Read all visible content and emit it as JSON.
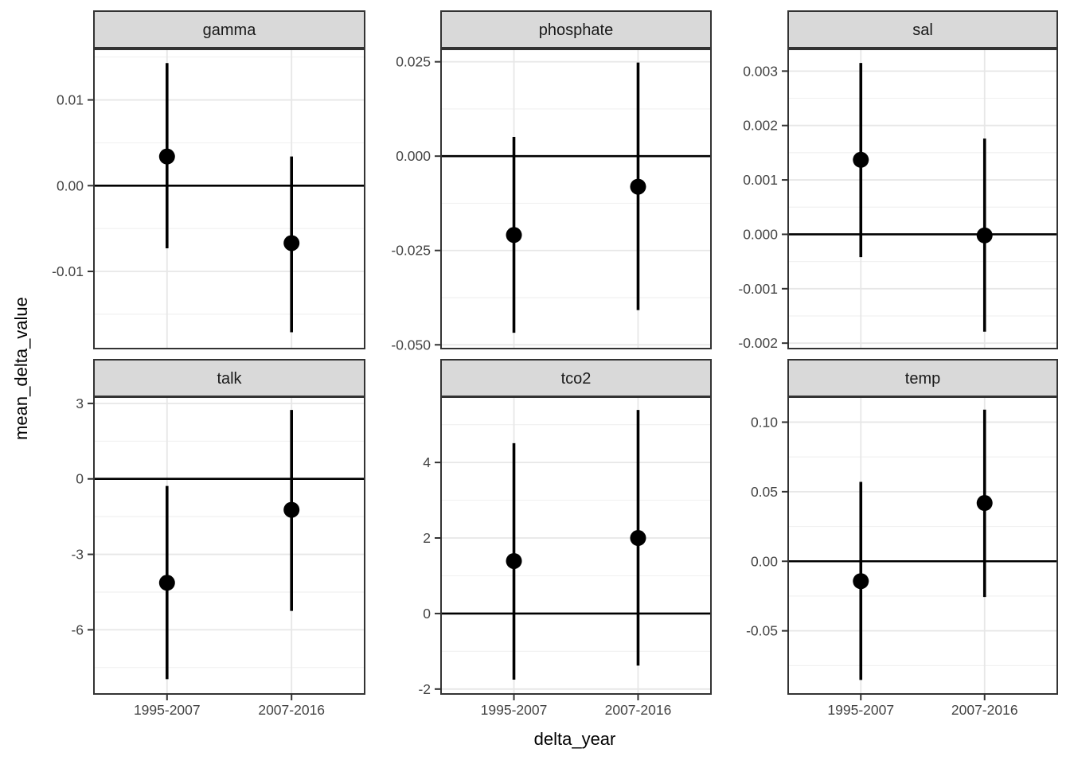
{
  "chart_data": {
    "type": "scatter",
    "subtype": "faceted_pointrange",
    "title": "",
    "xlabel": "delta_year",
    "ylabel": "mean_delta_value",
    "facet_rows": 2,
    "facet_cols": 3,
    "categories": [
      "1995-2007",
      "2007-2016"
    ],
    "hline": 0,
    "grid": "on",
    "legend": "none",
    "facets": [
      {
        "label": "gamma",
        "ylim": [
          -0.019,
          0.0159
        ],
        "yticks": [
          0.01,
          0,
          -0.01
        ],
        "ytick_labels": [
          "0.01",
          "0.00",
          "-0.01"
        ],
        "points": [
          {
            "x": "1995-2007",
            "y": 0.0034,
            "ymin": -0.0073,
            "ymax": 0.0143
          },
          {
            "x": "2007-2016",
            "y": -0.0067,
            "ymin": -0.0171,
            "ymax": 0.0034
          }
        ]
      },
      {
        "label": "phosphate",
        "ylim": [
          -0.051,
          0.0283
        ],
        "yticks": [
          0.025,
          0,
          -0.025,
          -0.05
        ],
        "ytick_labels": [
          "0.025",
          "0.000",
          "-0.025",
          "-0.050"
        ],
        "points": [
          {
            "x": "1995-2007",
            "y": -0.0209,
            "ymin": -0.0468,
            "ymax": 0.0051
          },
          {
            "x": "2007-2016",
            "y": -0.0081,
            "ymin": -0.0408,
            "ymax": 0.0248
          }
        ]
      },
      {
        "label": "sal",
        "ylim": [
          -0.0021,
          0.0034
        ],
        "yticks": [
          0.003,
          0.002,
          0.001,
          0,
          -0.001,
          -0.002
        ],
        "ytick_labels": [
          "0.003",
          "0.002",
          "0.001",
          "0.000",
          "-0.001",
          "-0.002"
        ],
        "points": [
          {
            "x": "1995-2007",
            "y": 0.00137,
            "ymin": -0.00042,
            "ymax": 0.00315
          },
          {
            "x": "2007-2016",
            "y": -2e-05,
            "ymin": -0.00179,
            "ymax": 0.00176
          }
        ]
      },
      {
        "label": "talk",
        "ylim": [
          -8.55,
          3.25
        ],
        "yticks": [
          3,
          0,
          -3,
          -6
        ],
        "ytick_labels": [
          "3",
          "0",
          "-3",
          "-6"
        ],
        "points": [
          {
            "x": "1995-2007",
            "y": -4.13,
            "ymin": -7.96,
            "ymax": -0.28
          },
          {
            "x": "2007-2016",
            "y": -1.23,
            "ymin": -5.25,
            "ymax": 2.74
          }
        ]
      },
      {
        "label": "tco2",
        "ylim": [
          -2.13,
          5.73
        ],
        "yticks": [
          4,
          2,
          0,
          -2
        ],
        "ytick_labels": [
          "4",
          "2",
          "0",
          "-2"
        ],
        "points": [
          {
            "x": "1995-2007",
            "y": 1.39,
            "ymin": -1.75,
            "ymax": 4.51
          },
          {
            "x": "2007-2016",
            "y": 2.0,
            "ymin": -1.38,
            "ymax": 5.39
          }
        ]
      },
      {
        "label": "temp",
        "ylim": [
          -0.0954,
          0.118
        ],
        "yticks": [
          0.1,
          0.05,
          0,
          -0.05
        ],
        "ytick_labels": [
          "0.10",
          "0.05",
          "0.00",
          "-0.05"
        ],
        "points": [
          {
            "x": "1995-2007",
            "y": -0.0143,
            "ymin": -0.0853,
            "ymax": 0.0571
          },
          {
            "x": "2007-2016",
            "y": 0.0419,
            "ymin": -0.0257,
            "ymax": 0.109
          }
        ]
      }
    ],
    "colors": {
      "background": "#ffffff",
      "panel_bg": "#ffffff",
      "strip_fill": "#d9d9d9",
      "strip_text": "#1a1a1a",
      "border": "#333333",
      "grid_major": "#e7e7e7",
      "grid_minor": "#f1f1f1",
      "tick_text": "#444444",
      "data": "#000000"
    }
  }
}
